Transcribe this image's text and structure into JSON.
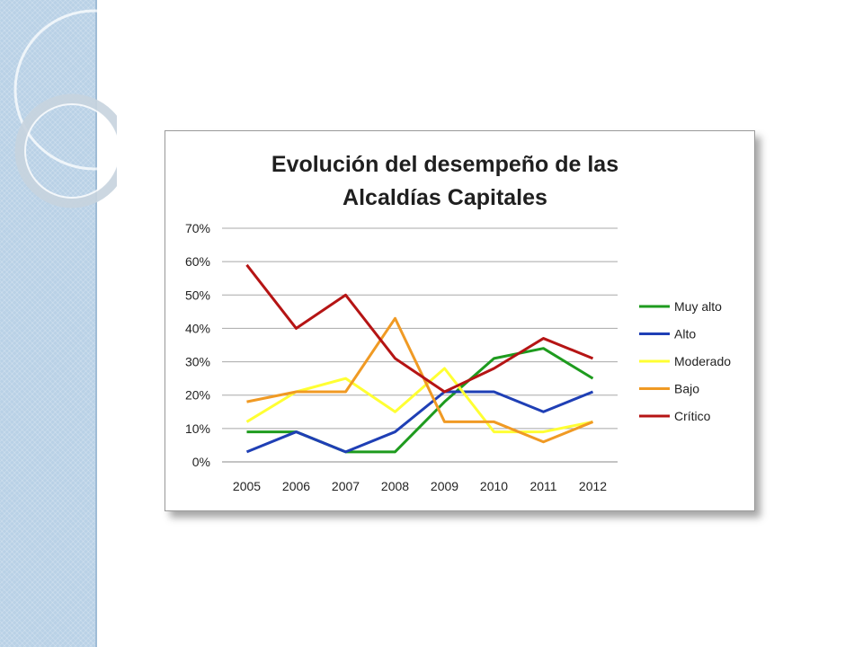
{
  "chart_data": {
    "type": "line",
    "title_lines": [
      "Evolución del desempeño de las",
      "Alcaldías Capitales"
    ],
    "categories": [
      "2005",
      "2006",
      "2007",
      "2008",
      "2009",
      "2010",
      "2011",
      "2012"
    ],
    "y_ticks": [
      "0%",
      "10%",
      "20%",
      "30%",
      "40%",
      "50%",
      "60%",
      "70%"
    ],
    "ylim": [
      0,
      70
    ],
    "grid": true,
    "legend_position": "right",
    "series": [
      {
        "name": "Muy alto",
        "color": "#1e9b1e",
        "values": [
          9,
          9,
          3,
          3,
          18,
          31,
          34,
          25
        ]
      },
      {
        "name": "Alto",
        "color": "#1f3fb5",
        "values": [
          3,
          9,
          3,
          9,
          21,
          21,
          15,
          21
        ]
      },
      {
        "name": "Moderado",
        "color": "#ffff33",
        "values": [
          12,
          21,
          25,
          15,
          28,
          9,
          9,
          12
        ]
      },
      {
        "name": "Bajo",
        "color": "#f09a24",
        "values": [
          18,
          21,
          21,
          43,
          12,
          12,
          6,
          12
        ]
      },
      {
        "name": "Crítico",
        "color": "#b51414",
        "values": [
          59,
          40,
          50,
          31,
          21,
          28,
          37,
          31
        ]
      }
    ]
  }
}
